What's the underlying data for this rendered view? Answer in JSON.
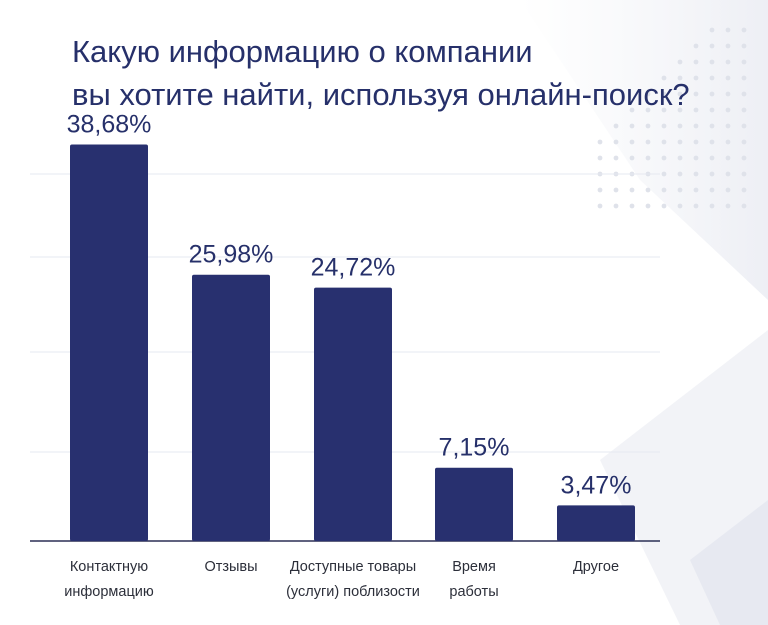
{
  "title_lines": [
    "Какую информацию о компании",
    "вы хотите найти, используя онлайн-поиск?"
  ],
  "colors": {
    "bar": "#28306f",
    "text": "#26306a",
    "axis": "#2b2f55",
    "grid": "#e6e8f0"
  },
  "chart_data": {
    "type": "bar",
    "title": "Какую информацию о компании вы хотите найти, используя онлайн-поиск?",
    "categories": [
      [
        "Контактную",
        "информацию"
      ],
      [
        "Отзывы"
      ],
      [
        "Доступные товары",
        "(услуги) поблизости"
      ],
      [
        "Время",
        "работы"
      ],
      [
        "Другое"
      ]
    ],
    "values": [
      38.68,
      25.98,
      24.72,
      7.15,
      3.47
    ],
    "value_labels": [
      "38,68%",
      "25,98%",
      "24,72%",
      "7,15%",
      "3,47%"
    ],
    "ylim": [
      0,
      40
    ],
    "grid": false,
    "legend": "none"
  }
}
